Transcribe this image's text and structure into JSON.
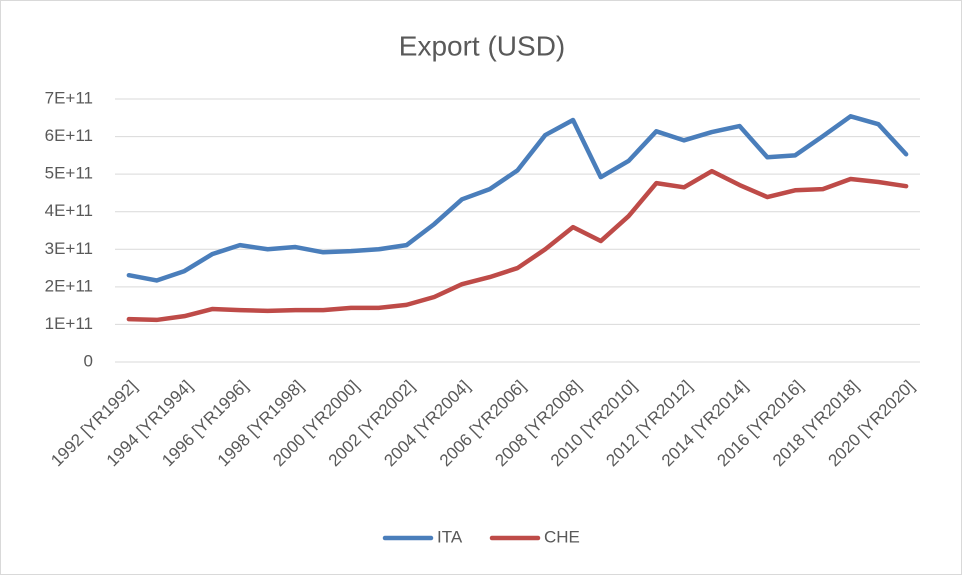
{
  "chart_data": {
    "type": "line",
    "title": "Export (USD)",
    "categories": [
      "1992 [YR1992]",
      null,
      "1994 [YR1994]",
      null,
      "1996 [YR1996]",
      null,
      "1998 [YR1998]",
      null,
      "2000 [YR2000]",
      null,
      "2002 [YR2002]",
      null,
      "2004 [YR2004]",
      null,
      "2006 [YR2006]",
      null,
      "2008 [YR2008]",
      null,
      "2010 [YR2010]",
      null,
      "2012 [YR2012]",
      null,
      "2014 [YR2014]",
      null,
      "2016 [YR2016]",
      null,
      "2018 [YR2018]",
      null,
      "2020 [YR2020]"
    ],
    "series": [
      {
        "name": "ITA",
        "color": "#4a7ebb",
        "values": [
          231000000000,
          217000000000,
          242000000000,
          287000000000,
          311000000000,
          300000000000,
          306000000000,
          292000000000,
          295000000000,
          300000000000,
          311000000000,
          367000000000,
          433000000000,
          460000000000,
          510000000000,
          604000000000,
          644000000000,
          492000000000,
          535000000000,
          614000000000,
          590000000000,
          612000000000,
          628000000000,
          545000000000,
          550000000000,
          601000000000,
          654000000000,
          633000000000,
          553000000000
        ]
      },
      {
        "name": "CHE",
        "color": "#be4b48",
        "values": [
          114000000000,
          112000000000,
          122000000000,
          141000000000,
          138000000000,
          136000000000,
          138000000000,
          138000000000,
          144000000000,
          144000000000,
          152000000000,
          173000000000,
          207000000000,
          226000000000,
          250000000000,
          300000000000,
          359000000000,
          322000000000,
          388000000000,
          476000000000,
          465000000000,
          508000000000,
          471000000000,
          439000000000,
          457000000000,
          460000000000,
          487000000000,
          479000000000,
          468000000000
        ]
      }
    ],
    "ylim": [
      0,
      700000000000
    ],
    "yticks": [
      0,
      {
        "value": 100000000000,
        "label": "1E+11"
      },
      {
        "value": 200000000000,
        "label": "2E+11"
      },
      {
        "value": 300000000000,
        "label": "3E+11"
      },
      {
        "value": 400000000000,
        "label": "4E+11"
      },
      {
        "value": 500000000000,
        "label": "5E+11"
      },
      {
        "value": 600000000000,
        "label": "6E+11"
      },
      {
        "value": 700000000000,
        "label": "7E+11"
      }
    ],
    "grid": true,
    "legend": "bottom"
  }
}
